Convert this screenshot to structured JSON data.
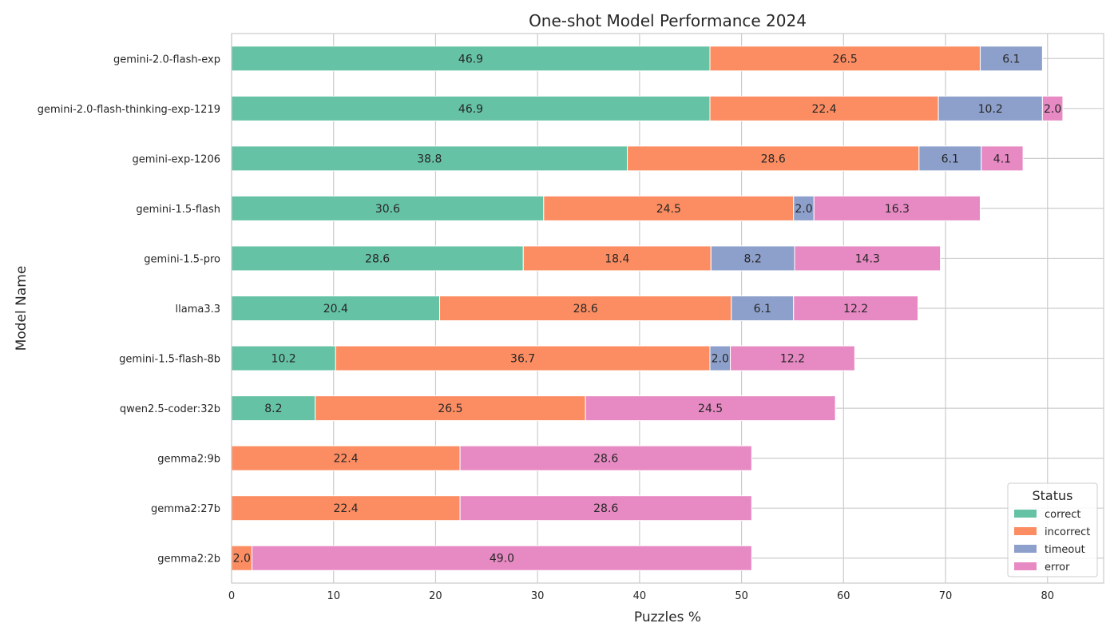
{
  "chart_data": {
    "type": "bar",
    "orientation": "horizontal",
    "stacked": true,
    "title": "One-shot Model Performance 2024",
    "xlabel": "Puzzles %",
    "ylabel": "Model Name",
    "xlim": [
      0,
      85.5
    ],
    "xticks": [
      0,
      10,
      20,
      30,
      40,
      50,
      60,
      70,
      80
    ],
    "grid": true,
    "categories": [
      "gemini-2.0-flash-exp",
      "gemini-2.0-flash-thinking-exp-1219",
      "gemini-exp-1206",
      "gemini-1.5-flash",
      "gemini-1.5-pro",
      "llama3.3",
      "gemini-1.5-flash-8b",
      "qwen2.5-coder:32b",
      "gemma2:9b",
      "gemma2:27b",
      "gemma2:2b"
    ],
    "series": [
      {
        "name": "correct",
        "color": "#66c2a5",
        "values": [
          46.9,
          46.9,
          38.8,
          30.6,
          28.6,
          20.4,
          10.2,
          8.2,
          0,
          0,
          0
        ]
      },
      {
        "name": "incorrect",
        "color": "#fc8d62",
        "values": [
          26.5,
          22.4,
          28.6,
          24.5,
          18.4,
          28.6,
          36.7,
          26.5,
          22.4,
          22.4,
          2.0
        ]
      },
      {
        "name": "timeout",
        "color": "#8da0cb",
        "values": [
          6.1,
          10.2,
          6.1,
          2.0,
          8.2,
          6.1,
          2.0,
          0,
          0,
          0,
          0
        ]
      },
      {
        "name": "error",
        "color": "#e78ac3",
        "values": [
          0,
          2.0,
          4.1,
          16.3,
          14.3,
          12.2,
          12.2,
          24.5,
          28.6,
          28.6,
          49.0
        ]
      }
    ],
    "legend": {
      "title": "Status",
      "placement": "bottom-right"
    }
  }
}
